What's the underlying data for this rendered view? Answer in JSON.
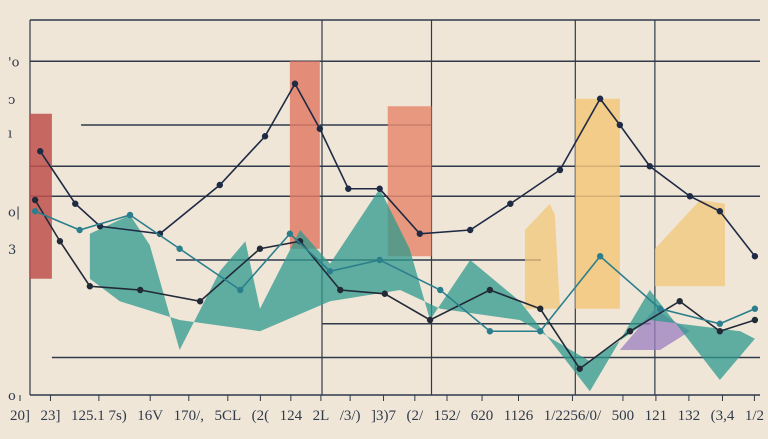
{
  "chart_data": {
    "type": "line",
    "title": "",
    "xlabel": "",
    "ylabel": "",
    "xlim": [
      0,
      100
    ],
    "ylim": [
      0,
      10
    ],
    "grid": true,
    "background": "#f0e6d8",
    "x_tick_labels": [
      "20]",
      "23]",
      "125.1 7s)",
      "16V",
      "170/,",
      "5CL",
      "(2(",
      "124",
      "2L",
      "/3/)",
      "]3)7",
      "(2/",
      "152/",
      "620",
      "1126",
      "1/2256/0/",
      "500",
      "121",
      "132",
      "(3,4",
      "1/2"
    ],
    "y_ticks": [
      {
        "value": 8.9,
        "label": "'o"
      },
      {
        "value": 7.9,
        "label": "ↄ"
      },
      {
        "value": 7.0,
        "label": "ı"
      },
      {
        "value": 4.9,
        "label": "o|"
      },
      {
        "value": 3.9,
        "label": "3"
      },
      {
        "value": 0,
        "label": "o"
      }
    ],
    "hlines": [
      {
        "y": 10,
        "from": 0,
        "to": 100
      },
      {
        "y": 8.9,
        "from": 0,
        "to": 100
      },
      {
        "y": 7.2,
        "from": 7,
        "to": 55
      },
      {
        "y": 6.1,
        "from": 0,
        "to": 100
      },
      {
        "y": 5.3,
        "from": 0,
        "to": 100
      },
      {
        "y": 3.6,
        "from": 20,
        "to": 70
      },
      {
        "y": 1.9,
        "from": 40,
        "to": 85
      },
      {
        "y": 1.0,
        "from": 3,
        "to": 100
      },
      {
        "y": 0,
        "from": 0,
        "to": 100
      }
    ],
    "vlines": [
      0,
      40,
      55,
      74.7,
      85.6
    ],
    "bars": [
      {
        "x0": 0,
        "x1": 3,
        "top": 7.5,
        "bottom": 3.1,
        "color": "#c0504d"
      },
      {
        "x0": 35.6,
        "x1": 39.7,
        "top": 8.9,
        "bottom": 3.9,
        "color": "#e07b66"
      },
      {
        "x0": 49,
        "x1": 55,
        "top": 7.7,
        "bottom": 3.7,
        "color": "#e58a6f"
      },
      {
        "x0": 74.7,
        "x1": 80.8,
        "top": 7.9,
        "bottom": 2.3,
        "color": "#f2c77a"
      }
    ],
    "areas": [
      {
        "color": "#f2c77a",
        "points": [
          [
            67.8,
            4.4
          ],
          [
            71.2,
            5.1
          ],
          [
            71.9,
            4.8
          ],
          [
            72.6,
            2.3
          ],
          [
            67.8,
            2.3
          ]
        ]
      },
      {
        "color": "#f2c77a",
        "points": [
          [
            85.6,
            3.9
          ],
          [
            91.8,
            5.2
          ],
          [
            95.2,
            5.1
          ],
          [
            95.2,
            2.9
          ],
          [
            85.6,
            2.9
          ]
        ]
      },
      {
        "color": "#9b7fc0",
        "points": [
          [
            80.8,
            1.2
          ],
          [
            85.6,
            2.3
          ],
          [
            90.4,
            1.7
          ],
          [
            86.3,
            1.2
          ]
        ]
      },
      {
        "color": "#2e9a8e",
        "points": [
          [
            8.2,
            4.3
          ],
          [
            13.7,
            4.8
          ],
          [
            16.4,
            4.0
          ],
          [
            20.5,
            1.2
          ],
          [
            26,
            3.3
          ],
          [
            29.5,
            4.1
          ],
          [
            31.5,
            2.3
          ],
          [
            37,
            4.4
          ],
          [
            41.1,
            3.5
          ],
          [
            47.9,
            5.5
          ],
          [
            52,
            3.9
          ],
          [
            54.8,
            2.0
          ],
          [
            60.3,
            3.6
          ],
          [
            67.1,
            2.5
          ],
          [
            76.7,
            0.1
          ],
          [
            84.9,
            2.8
          ],
          [
            94.5,
            0.4
          ],
          [
            99.3,
            1.5
          ],
          [
            97.3,
            1.7
          ],
          [
            84.9,
            2.0
          ],
          [
            76.7,
            0.9
          ],
          [
            67.1,
            2.0
          ],
          [
            56.2,
            2.3
          ],
          [
            50.7,
            2.8
          ],
          [
            41.1,
            2.5
          ],
          [
            31.5,
            1.7
          ],
          [
            20.5,
            2.0
          ],
          [
            12.3,
            2.5
          ],
          [
            8.2,
            3.1
          ]
        ]
      }
    ],
    "series": [
      {
        "color": "#1f2a44",
        "values": [
          [
            1.4,
            6.5
          ],
          [
            6.2,
            5.1
          ],
          [
            9.6,
            4.5
          ],
          [
            17.8,
            4.3
          ],
          [
            26,
            5.6
          ],
          [
            32.2,
            6.9
          ],
          [
            36.3,
            8.3
          ],
          [
            39.7,
            7.1
          ],
          [
            43.6,
            5.5
          ],
          [
            47.9,
            5.5
          ],
          [
            53.4,
            4.3
          ],
          [
            60.3,
            4.4
          ],
          [
            65.8,
            5.1
          ],
          [
            72.6,
            6.0
          ],
          [
            78.1,
            7.9
          ],
          [
            80.8,
            7.2
          ],
          [
            84.9,
            6.1
          ],
          [
            90.4,
            5.3
          ],
          [
            94.5,
            4.9
          ],
          [
            99.3,
            3.7
          ]
        ]
      },
      {
        "color": "#222a38",
        "values": [
          [
            0.7,
            5.2
          ],
          [
            4.1,
            4.1
          ],
          [
            8.2,
            2.9
          ],
          [
            15.1,
            2.8
          ],
          [
            23.3,
            2.5
          ],
          [
            31.5,
            3.9
          ],
          [
            37,
            4.1
          ],
          [
            42.5,
            2.8
          ],
          [
            48.6,
            2.7
          ],
          [
            54.8,
            2.0
          ],
          [
            63,
            2.8
          ],
          [
            69.9,
            2.3
          ],
          [
            75.3,
            0.7
          ],
          [
            82.2,
            1.7
          ],
          [
            89,
            2.5
          ],
          [
            94.5,
            1.7
          ],
          [
            99.3,
            2.0
          ]
        ]
      },
      {
        "color": "#2b7f8c",
        "values": [
          [
            0.7,
            4.9
          ],
          [
            6.8,
            4.4
          ],
          [
            13.7,
            4.8
          ],
          [
            20.5,
            3.9
          ],
          [
            28.8,
            2.8
          ],
          [
            35.6,
            4.3
          ],
          [
            41.1,
            3.3
          ],
          [
            47.9,
            3.6
          ],
          [
            56.2,
            2.8
          ],
          [
            63,
            1.7
          ],
          [
            69.9,
            1.7
          ],
          [
            78.1,
            3.7
          ],
          [
            86.3,
            2.3
          ],
          [
            94.5,
            1.9
          ],
          [
            99.3,
            2.3
          ]
        ]
      }
    ]
  }
}
